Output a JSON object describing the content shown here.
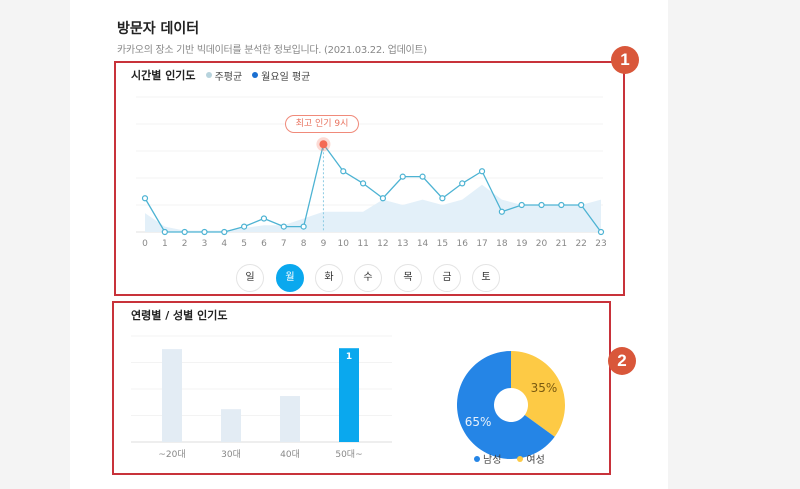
{
  "header": {
    "title": "방문자 데이터",
    "subtitle": "카카오의 장소 기반 빅데이터를 분석한 정보입니다. (2021.03.22. 업데이트)"
  },
  "annotations": {
    "badge1": "1",
    "badge2": "2",
    "box_color": "#c8323a",
    "badge_color": "#d9573a"
  },
  "hourly": {
    "title": "시간별 인기도",
    "legend": [
      {
        "label": "주평균",
        "color": "#b7d3dd"
      },
      {
        "label": "월요일 평균",
        "color": "#1b6fd1"
      }
    ],
    "peak_label": "최고 인기 9시",
    "days": [
      "일",
      "월",
      "화",
      "수",
      "목",
      "금",
      "토"
    ],
    "selected_day": "월",
    "accent": "#0aa8ee"
  },
  "chart_data": [
    {
      "type": "line",
      "title": "시간별 인기도",
      "x": [
        0,
        1,
        2,
        3,
        4,
        5,
        6,
        7,
        8,
        9,
        10,
        11,
        12,
        13,
        14,
        15,
        16,
        17,
        18,
        19,
        20,
        21,
        22,
        23
      ],
      "ylim": [
        0,
        100
      ],
      "grid": true,
      "legend_placement": "top-left",
      "series": [
        {
          "name": "주평균",
          "type": "area",
          "color": "#e3f0f9",
          "values": [
            14,
            4,
            1,
            1,
            1,
            3,
            5,
            5,
            10,
            15,
            15,
            15,
            24,
            20,
            24,
            20,
            24,
            35,
            24,
            20,
            20,
            20,
            20,
            24
          ]
        },
        {
          "name": "월요일 평균",
          "type": "line",
          "color": "#4db3d3",
          "values": [
            25,
            0,
            0,
            0,
            0,
            4,
            10,
            4,
            4,
            65,
            45,
            36,
            25,
            41,
            41,
            25,
            36,
            45,
            15,
            20,
            20,
            20,
            20,
            0
          ]
        }
      ],
      "peak": {
        "x": 9,
        "color": "#f46a55"
      }
    },
    {
      "type": "bar",
      "title": "연령별 / 성별 인기도",
      "categories": [
        "~20대",
        "30대",
        "40대",
        "50대~"
      ],
      "values": [
        0.99,
        0.35,
        0.49,
        1
      ],
      "highlight_index": 3,
      "highlight_label": "1",
      "colors": {
        "normal": "#e3ecf4",
        "highlight": "#0aa8ee"
      },
      "ylim": [
        0,
        1.13
      ],
      "grid": true
    },
    {
      "type": "pie",
      "donut": true,
      "slices": [
        {
          "label": "여성",
          "value": 35,
          "text": "35%",
          "color": "#fdca45"
        },
        {
          "label": "남성",
          "value": 65,
          "text": "65%",
          "color": "#2585e6"
        }
      ],
      "legend_placement": "bottom",
      "legend": [
        {
          "label": "남성",
          "color": "#2585e6"
        },
        {
          "label": "여성",
          "color": "#fdca45"
        }
      ]
    }
  ]
}
